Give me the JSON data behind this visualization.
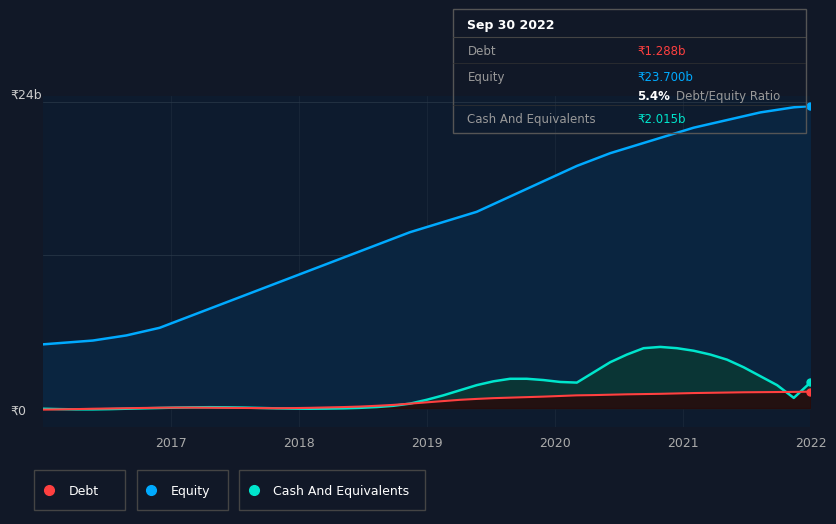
{
  "background_color": "#111827",
  "chart_bg_color": "#0d1b2e",
  "tooltip": {
    "date": "Sep 30 2022",
    "debt_label": "Debt",
    "debt_value": "₹1.288b",
    "equity_label": "Equity",
    "equity_value": "₹23.700b",
    "ratio_value": "5.4%",
    "ratio_label": "Debt/Equity Ratio",
    "cash_label": "Cash And Equivalents",
    "cash_value": "₹2.015b"
  },
  "legend": [
    {
      "label": "Debt",
      "color": "#ff4040"
    },
    {
      "label": "Equity",
      "color": "#00aaff"
    },
    {
      "label": "Cash And Equivalents",
      "color": "#00e5cc"
    }
  ],
  "equity_color": "#00aaff",
  "equity_fill": "#0a2540",
  "debt_color": "#ff4040",
  "debt_fill": "#2a0808",
  "cash_color": "#00e5cc",
  "cash_fill": "#0a3535",
  "grid_color": "#2a3a4a",
  "ylabel_top": "₹24b",
  "ylabel_zero": "₹0",
  "x_ticks": [
    "2017",
    "2018",
    "2019",
    "2020",
    "2021",
    "2022"
  ],
  "equity_data": [
    5.0,
    5.1,
    5.2,
    5.3,
    5.5,
    5.7,
    6.0,
    6.3,
    6.8,
    7.3,
    7.8,
    8.3,
    8.8,
    9.3,
    9.8,
    10.3,
    10.8,
    11.3,
    11.8,
    12.3,
    12.8,
    13.3,
    13.8,
    14.2,
    14.6,
    15.0,
    15.4,
    16.0,
    16.6,
    17.2,
    17.8,
    18.4,
    19.0,
    19.5,
    20.0,
    20.4,
    20.8,
    21.2,
    21.6,
    22.0,
    22.3,
    22.6,
    22.9,
    23.2,
    23.4,
    23.6,
    23.7
  ],
  "debt_data": [
    -0.12,
    -0.1,
    -0.08,
    -0.05,
    -0.03,
    -0.01,
    0.01,
    0.03,
    0.04,
    0.04,
    0.03,
    0.02,
    0.01,
    0.0,
    -0.01,
    0.0,
    0.02,
    0.05,
    0.08,
    0.12,
    0.18,
    0.25,
    0.35,
    0.45,
    0.55,
    0.65,
    0.72,
    0.78,
    0.82,
    0.86,
    0.9,
    0.95,
    1.0,
    1.02,
    1.05,
    1.08,
    1.1,
    1.12,
    1.15,
    1.18,
    1.2,
    1.22,
    1.24,
    1.25,
    1.26,
    1.27,
    1.288
  ],
  "cash_data": [
    -0.05,
    -0.08,
    -0.1,
    -0.1,
    -0.08,
    -0.05,
    -0.02,
    0.01,
    0.04,
    0.06,
    0.07,
    0.06,
    0.04,
    0.01,
    -0.02,
    -0.04,
    -0.05,
    -0.04,
    -0.02,
    0.02,
    0.08,
    0.18,
    0.35,
    0.65,
    1.0,
    1.4,
    1.8,
    2.1,
    2.3,
    2.3,
    2.2,
    2.05,
    2.0,
    2.8,
    3.6,
    4.2,
    4.7,
    4.8,
    4.7,
    4.5,
    4.2,
    3.8,
    3.2,
    2.5,
    1.8,
    0.8,
    2.015
  ]
}
